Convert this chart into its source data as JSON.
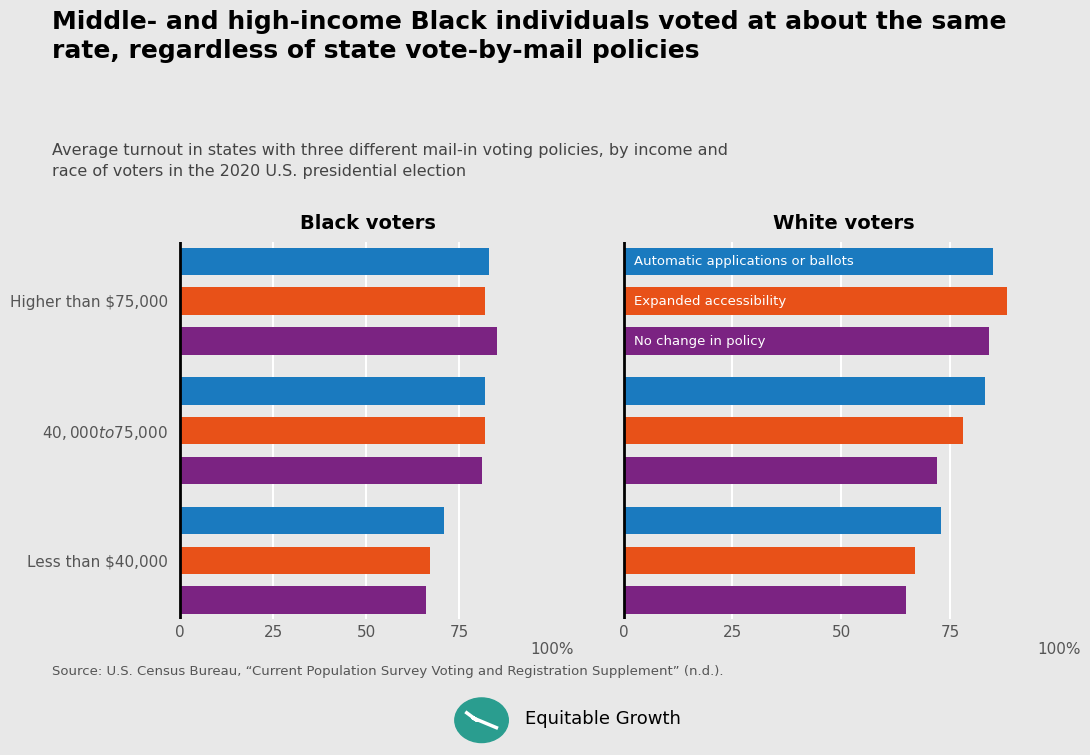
{
  "title": "Middle- and high-income Black individuals voted at about the same\nrate, regardless of state vote-by-mail policies",
  "subtitle": "Average turnout in states with three different mail-in voting policies, by income and\nrace of voters in the 2020 U.S. presidential election",
  "source": "Source: U.S. Census Bureau, “Current Population Survey Voting and Registration Supplement” (n.d.).",
  "background_color": "#e8e8e8",
  "panel_titles": [
    "Black voters",
    "White voters"
  ],
  "categories": [
    "Higher than $75,000",
    "$40,000 to $75,000",
    "Less than $40,000"
  ],
  "legend_labels": [
    "Automatic applications or ballots",
    "Expanded accessibility",
    "No change in policy"
  ],
  "colors": [
    "#1a7abf",
    "#e85118",
    "#7b2382"
  ],
  "black_values": [
    [
      83,
      82,
      85
    ],
    [
      82,
      82,
      81
    ],
    [
      71,
      67,
      66
    ]
  ],
  "white_values": [
    [
      85,
      88,
      84
    ],
    [
      83,
      78,
      72
    ],
    [
      73,
      67,
      65
    ]
  ],
  "xticks": [
    0,
    25,
    50,
    75
  ],
  "xlim": [
    0,
    102
  ]
}
